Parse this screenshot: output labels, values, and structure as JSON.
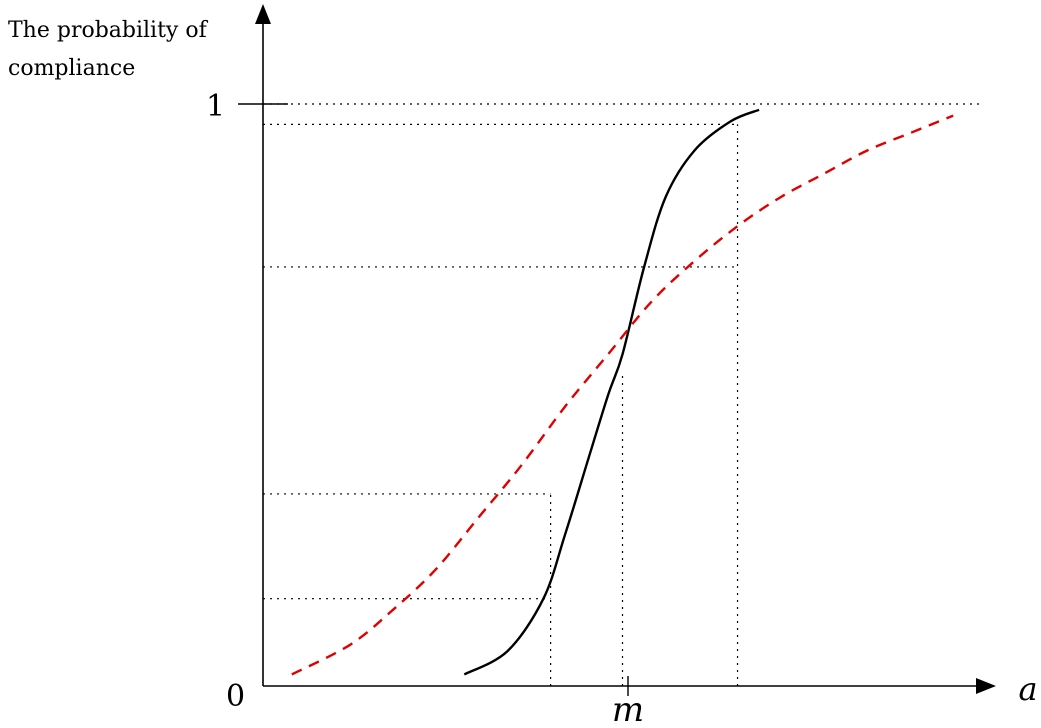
{
  "chart_data": {
    "type": "line",
    "ylabel_lines": [
      "The probability of",
      "compliance"
    ],
    "xlabel": "a",
    "y_ticks": [
      {
        "value": 0,
        "label": "0"
      },
      {
        "value": 1,
        "label": "1"
      }
    ],
    "x_ticks": [
      {
        "value": 0.5,
        "label": "m"
      }
    ],
    "xlim": [
      0,
      1
    ],
    "ylim": [
      0,
      1
    ],
    "grid": false,
    "colors": {
      "axes": "#000000",
      "solid_series": "#000000",
      "dashed_series": "#e00000",
      "guides": "#000000"
    },
    "series": [
      {
        "style": "solid",
        "x": [
          0.28,
          0.34,
          0.39,
          0.42,
          0.45,
          0.48,
          0.5,
          0.53,
          0.56,
          0.6,
          0.65,
          0.69
        ],
        "y": [
          0.02,
          0.06,
          0.15,
          0.26,
          0.38,
          0.5,
          0.57,
          0.72,
          0.84,
          0.92,
          0.97,
          0.99
        ]
      },
      {
        "style": "dashed",
        "x": [
          0.04,
          0.12,
          0.18,
          0.24,
          0.3,
          0.36,
          0.42,
          0.48,
          0.54,
          0.6,
          0.66,
          0.72,
          0.78,
          0.84,
          0.9,
          0.96
        ],
        "y": [
          0.02,
          0.07,
          0.13,
          0.2,
          0.29,
          0.38,
          0.48,
          0.57,
          0.66,
          0.73,
          0.79,
          0.84,
          0.88,
          0.92,
          0.95,
          0.98
        ]
      }
    ],
    "guides": [
      {
        "kind": "h",
        "y": 1.0,
        "x_to": 1.0
      },
      {
        "kind": "h",
        "y": 0.965,
        "x_to": 0.66
      },
      {
        "kind": "h",
        "y": 0.72,
        "x_to": 0.66
      },
      {
        "kind": "h",
        "y": 0.33,
        "x_to": 0.4
      },
      {
        "kind": "h",
        "y": 0.15,
        "x_to": 0.4
      },
      {
        "kind": "v",
        "x": 0.4,
        "y_to": 0.33
      },
      {
        "kind": "v",
        "x": 0.5,
        "y_to": 0.54
      },
      {
        "kind": "v",
        "x": 0.66,
        "y_to": 0.965
      }
    ]
  }
}
